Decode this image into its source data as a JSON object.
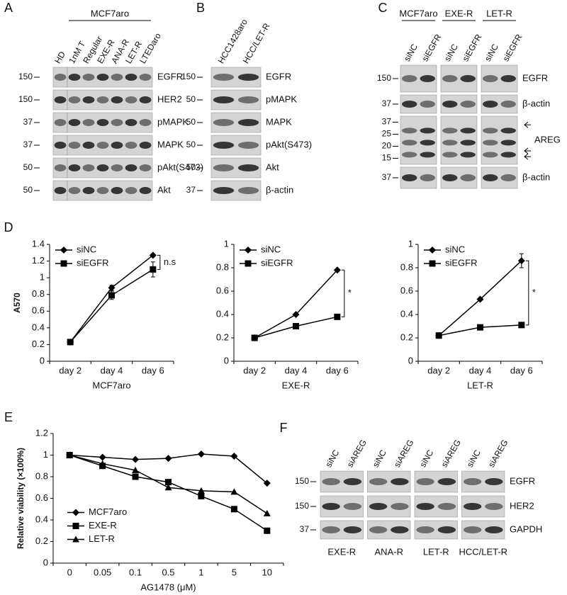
{
  "panels": [
    {
      "letter": "A",
      "group_labels": "top",
      "groups": [
        {
          "lanes": [
            "HD"
          ]
        },
        {
          "name": "MCF7aro",
          "lanes": [
            "1nM T",
            "Regular",
            "EXE-R",
            "ANA-R",
            "LET-R",
            "LTEDaro"
          ]
        }
      ],
      "rows": [
        {
          "label": "EGFR",
          "markers": [
            150
          ]
        },
        {
          "label": "HER2",
          "markers": [
            150
          ]
        },
        {
          "label": "pMAPK",
          "markers": [
            37
          ]
        },
        {
          "label": "MAPK",
          "markers": [
            37
          ]
        },
        {
          "label": "pAkt(S473)",
          "markers": [
            50
          ]
        },
        {
          "label": "Akt",
          "markers": [
            50
          ]
        }
      ]
    },
    {
      "letter": "B",
      "group_labels": "top",
      "groups": [
        {
          "lanes": [
            "HCC1428aro",
            "HCC/LET-R"
          ]
        }
      ],
      "rows": [
        {
          "label": "EGFR",
          "markers": [
            150
          ]
        },
        {
          "label": "pMAPK",
          "markers": [
            50
          ]
        },
        {
          "label": "MAPK",
          "markers": [
            50
          ]
        },
        {
          "label": "pAkt(S473)",
          "markers": [
            50
          ]
        },
        {
          "label": "Akt",
          "markers": [
            50
          ]
        },
        {
          "label": "β-actin",
          "markers": [
            37
          ]
        }
      ]
    },
    {
      "letter": "C",
      "group_labels": "top",
      "groups": [
        {
          "name": "MCF7aro",
          "lanes": [
            "siNC",
            "siEGFR"
          ]
        },
        {
          "name": "EXE-R",
          "lanes": [
            "siNC",
            "siEGFR"
          ]
        },
        {
          "name": "LET-R",
          "lanes": [
            "siNC",
            "siEGFR"
          ]
        }
      ],
      "rows": [
        {
          "label": "EGFR",
          "markers": [
            150
          ]
        },
        {
          "label": "β-actin",
          "markers": [
            37
          ]
        },
        {
          "label": "AREG",
          "markers": [
            37,
            25,
            20,
            15
          ]
        },
        {
          "label": "β-actin",
          "markers": [
            37
          ]
        }
      ]
    },
    {
      "letter": "F",
      "group_labels": "bottom",
      "groups": [
        {
          "name": "EXE-R",
          "lanes": [
            "siNC",
            "siAREG"
          ]
        },
        {
          "name": "ANA-R",
          "lanes": [
            "siNC",
            "siAREG"
          ]
        },
        {
          "name": "LET-R",
          "lanes": [
            "siNC",
            "siAREG"
          ]
        },
        {
          "name": "HCC/LET-R",
          "lanes": [
            "siNC",
            "siAREG"
          ]
        }
      ],
      "rows": [
        {
          "label": "EGFR",
          "markers": [
            150
          ]
        },
        {
          "label": "HER2",
          "markers": [
            150
          ]
        },
        {
          "label": "GAPDH",
          "markers": [
            37
          ]
        }
      ]
    }
  ],
  "chart_data": [
    {
      "type": "line",
      "panel_letter": "D",
      "y_label": "A570",
      "x_label": "MCF7aro",
      "categories": [
        "day 2",
        "day 4",
        "day 6"
      ],
      "ylim": [
        0,
        1.4
      ],
      "yticks": [
        0,
        0.2,
        0.4,
        0.6,
        0.8,
        1,
        1.2,
        1.4
      ],
      "legend": "upper left",
      "annotation": "n.s",
      "series": [
        {
          "name": "siNC",
          "color": "#000000",
          "marker": "diamond",
          "values": [
            0.23,
            0.88,
            1.27
          ],
          "errors": [
            0,
            0.03,
            0.01
          ]
        },
        {
          "name": "siEGFR",
          "color": "#000000",
          "marker": "square",
          "values": [
            0.23,
            0.79,
            1.1
          ],
          "errors": [
            0,
            0.05,
            0.09
          ]
        }
      ]
    },
    {
      "type": "line",
      "x_label": "EXE-R",
      "categories": [
        "day 2",
        "day 4",
        "day 6"
      ],
      "ylim": [
        0,
        1
      ],
      "yticks": [
        0,
        0.2,
        0.4,
        0.6,
        0.8,
        1
      ],
      "legend": "upper left",
      "annotation": "*",
      "series": [
        {
          "name": "siNC",
          "color": "#000000",
          "marker": "diamond",
          "values": [
            0.2,
            0.4,
            0.78
          ],
          "errors": [
            0,
            0.01,
            0.01
          ]
        },
        {
          "name": "siEGFR",
          "color": "#000000",
          "marker": "square",
          "values": [
            0.2,
            0.3,
            0.38
          ],
          "errors": [
            0,
            0.01,
            0.02
          ]
        }
      ]
    },
    {
      "type": "line",
      "x_label": "LET-R",
      "categories": [
        "day 2",
        "day 4",
        "day 6"
      ],
      "ylim": [
        0,
        1
      ],
      "yticks": [
        0,
        0.2,
        0.4,
        0.6,
        0.8,
        1
      ],
      "legend": "upper left",
      "annotation": "*",
      "series": [
        {
          "name": "siNC",
          "color": "#000000",
          "marker": "diamond",
          "values": [
            0.22,
            0.53,
            0.86
          ],
          "errors": [
            0,
            0.01,
            0.06
          ]
        },
        {
          "name": "siEGFR",
          "color": "#000000",
          "marker": "square",
          "values": [
            0.22,
            0.29,
            0.31
          ],
          "errors": [
            0,
            0.01,
            0.02
          ]
        }
      ]
    },
    {
      "type": "line",
      "panel_letter": "E",
      "y_label": "Relative viability (×100%)",
      "x_label": "AG1478 (μM)",
      "categories": [
        "0",
        "0.05",
        "0.1",
        "0.5",
        "1",
        "5",
        "10"
      ],
      "ylim": [
        0,
        1.2
      ],
      "yticks": [
        0,
        0.2,
        0.4,
        0.6,
        0.8,
        1,
        1.2
      ],
      "legend": "center left",
      "series": [
        {
          "name": "MCF7aro",
          "color": "#000000",
          "marker": "diamond",
          "values": [
            1,
            0.98,
            0.96,
            0.97,
            1.01,
            0.99,
            0.74
          ]
        },
        {
          "name": "EXE-R",
          "color": "#000000",
          "marker": "square",
          "values": [
            1,
            0.9,
            0.8,
            0.75,
            0.62,
            0.5,
            0.3
          ]
        },
        {
          "name": "LET-R",
          "color": "#000000",
          "marker": "triangle",
          "values": [
            1,
            0.92,
            0.86,
            0.7,
            0.67,
            0.66,
            0.46
          ]
        }
      ]
    }
  ]
}
